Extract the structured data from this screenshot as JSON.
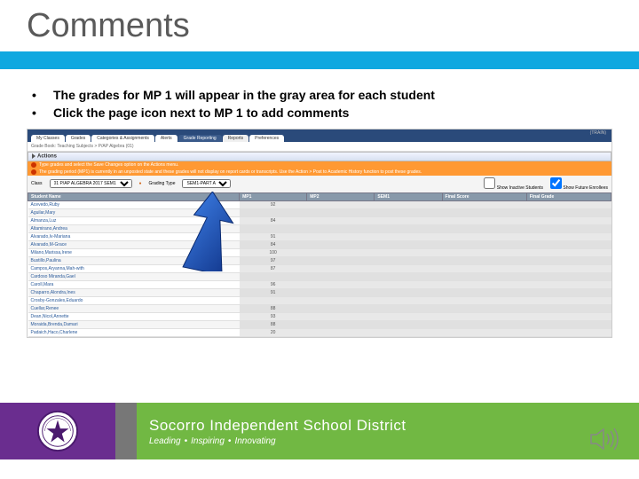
{
  "slide": {
    "title": "Comments",
    "bullets": [
      "The grades for MP 1 will appear in the gray area for each student",
      "Click the page icon next to MP 1 to add comments"
    ]
  },
  "screenshot": {
    "train_label": "(TRAIN)",
    "tabs": [
      "My Classes",
      "Grades",
      "Categories & Assignments",
      "Alerts",
      "Grade Reporting",
      "Reports",
      "Preferences"
    ],
    "active_tab_index": 4,
    "crumb": "Grade Book: Teaching Subjects > P/AP Algebra (01)",
    "actions_label": "Actions",
    "alert1": "Type grades and select the Save Changes option on the Actions menu.",
    "alert2": "The grading period (MP1) is currently in an unposted state and these grades will not display on report cards or transcripts. Use the Action > Post to Academic History function to post these grades.",
    "filter": {
      "class_label": "Class",
      "class_value": "01 P/AP ALGEBRA 2017 SEM1",
      "grading_label": "Grading Type",
      "grading_value": "SEM1-PART A",
      "show_inactive": "Show Inactive Students",
      "show_future": "Show Future Enrollees"
    },
    "table": {
      "headers": [
        "Student Name",
        "MP1",
        "MP2",
        "SEM1",
        "Final Score",
        "Final Grade"
      ],
      "rows": [
        {
          "name": "Acevedo,Ruby",
          "mp1": "92"
        },
        {
          "name": "Aguilar,Mary",
          "mp1": ""
        },
        {
          "name": "Almanza,Luz",
          "mp1": "84"
        },
        {
          "name": "Altamirano,Andrea",
          "mp1": ""
        },
        {
          "name": "Alvarado,Iv-Mariana",
          "mp1": "91"
        },
        {
          "name": "Alvarado,M-Grace",
          "mp1": "84"
        },
        {
          "name": "Milano,Marissa,Irene",
          "mp1": "100"
        },
        {
          "name": "Bustillo,Paulina",
          "mp1": "97"
        },
        {
          "name": "Campos,Aryanna,Mah-with",
          "mp1": "87"
        },
        {
          "name": "Cardoso Miranda,Gael",
          "mp1": ""
        },
        {
          "name": "Caroll,Mara",
          "mp1": "96"
        },
        {
          "name": "Chaparro,Alondra,Ines",
          "mp1": "91"
        },
        {
          "name": "Crosby-Gonzales,Eduardo",
          "mp1": ""
        },
        {
          "name": "Cuellar,Renee",
          "mp1": "88"
        },
        {
          "name": "Dean,Nicol,Annette",
          "mp1": "93"
        },
        {
          "name": "Moraida,Brenda,Damari",
          "mp1": "88"
        },
        {
          "name": "Padaich,Haco,Charlene",
          "mp1": "20"
        }
      ]
    }
  },
  "footer": {
    "district": "Socorro Independent School District",
    "tagline_parts": [
      "Leading",
      "Inspiring",
      "Innovating"
    ]
  },
  "colors": {
    "title_blue": "#0fa8e0",
    "footer_purple": "#6a2d8f",
    "footer_green": "#71b843",
    "arrow_blue": "#1f5fd0"
  }
}
